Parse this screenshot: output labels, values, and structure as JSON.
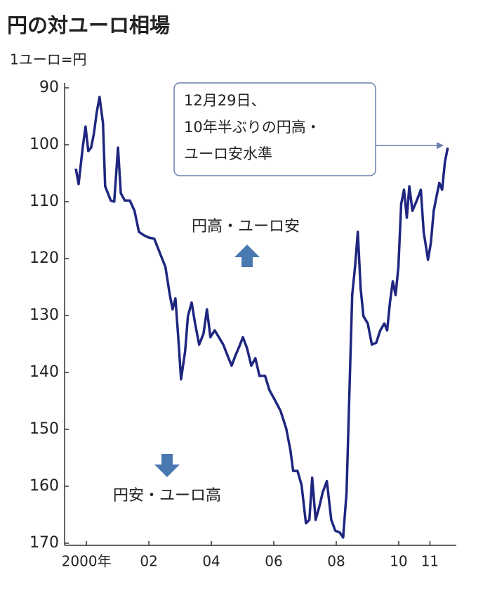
{
  "chart_data": {
    "type": "line",
    "title": "円の対ユーロ相場",
    "y_label": "1ユーロ=円",
    "x": [
      2000.16,
      2000.25,
      2000.38,
      2000.47,
      2000.56,
      2000.65,
      2000.74,
      2000.83,
      2000.92,
      2001.03,
      2001.1,
      2001.28,
      2001.39,
      2001.51,
      2001.6,
      2001.73,
      2001.89,
      2002.04,
      2002.18,
      2002.34,
      2002.49,
      2002.67,
      2002.85,
      2003.03,
      2003.17,
      2003.26,
      2003.35,
      2003.44,
      2003.53,
      2003.66,
      2003.75,
      2003.87,
      2003.98,
      2004.11,
      2004.25,
      2004.36,
      2004.47,
      2004.61,
      2004.74,
      2004.88,
      2005.01,
      2005.15,
      2005.28,
      2005.42,
      2005.51,
      2005.64,
      2005.78,
      2005.91,
      2006.04,
      2006.22,
      2006.36,
      2006.54,
      2006.72,
      2006.9,
      2007.03,
      2007.12,
      2007.26,
      2007.39,
      2007.53,
      2007.64,
      2007.73,
      2007.84,
      2007.96,
      2008.07,
      2008.2,
      2008.34,
      2008.47,
      2008.61,
      2008.72,
      2008.83,
      2008.92,
      2009.01,
      2009.1,
      2009.19,
      2009.28,
      2009.37,
      2009.51,
      2009.64,
      2009.78,
      2009.91,
      2010.04,
      2010.13,
      2010.22,
      2010.31,
      2010.4,
      2010.49,
      2010.58,
      2010.67,
      2010.76,
      2010.84,
      2010.94,
      2011.08,
      2011.21,
      2011.3,
      2011.44,
      2011.53,
      2011.62,
      2011.71,
      2011.8,
      2011.89,
      2011.98,
      2012.07
    ],
    "series": [
      {
        "color": "#1f2680",
        "values": [
          104.2,
          106.9,
          100.5,
          96.8,
          101.1,
          100.5,
          98.0,
          94.3,
          91.6,
          96.2,
          107.3,
          109.8,
          110.0,
          100.5,
          108.5,
          109.8,
          109.8,
          111.6,
          115.3,
          115.9,
          116.3,
          116.5,
          119.0,
          121.5,
          126.4,
          128.9,
          127.0,
          133.8,
          141.2,
          136.3,
          130.1,
          127.7,
          131.4,
          135.1,
          133.2,
          128.9,
          133.8,
          132.6,
          133.8,
          135.1,
          136.9,
          138.8,
          136.9,
          135.1,
          133.8,
          135.7,
          138.8,
          137.5,
          140.6,
          140.6,
          143.1,
          144.9,
          146.8,
          149.9,
          153.6,
          157.3,
          157.3,
          159.8,
          166.5,
          165.9,
          158.5,
          165.9,
          163.5,
          161.0,
          159.1,
          165.9,
          167.8,
          168.1,
          169.0,
          161.0,
          143.7,
          126.4,
          121.5,
          115.3,
          125.2,
          130.1,
          131.4,
          135.1,
          134.8,
          132.6,
          131.4,
          132.6,
          127.7,
          124.0,
          126.4,
          121.5,
          110.4,
          107.9,
          112.8,
          107.3,
          111.6,
          109.8,
          107.9,
          115.3,
          120.2,
          117.2,
          111.6,
          109.1,
          106.7,
          107.9,
          103.0,
          100.5
        ]
      }
    ],
    "xlim": [
      1999.8,
      2012.3
    ],
    "xticks": [
      {
        "value": 2000.5,
        "label": "2000年"
      },
      {
        "value": 2002.5,
        "label": "02"
      },
      {
        "value": 2004.5,
        "label": "04"
      },
      {
        "value": 2006.5,
        "label": "06"
      },
      {
        "value": 2008.5,
        "label": "08"
      },
      {
        "value": 2010.5,
        "label": "10"
      },
      {
        "value": 2011.5,
        "label": "11"
      }
    ],
    "ylim": [
      90,
      170
    ],
    "y_inverted": true,
    "yticks": [
      90,
      100,
      110,
      120,
      130,
      140,
      150,
      160,
      170
    ],
    "annotations": [
      {
        "lines": [
          "12月29日、",
          "10年半ぶりの円高・",
          "ユーロ安水準"
        ]
      },
      {
        "text": "円高・ユーロ安"
      },
      {
        "text": "円安・ユーロ高"
      }
    ]
  }
}
